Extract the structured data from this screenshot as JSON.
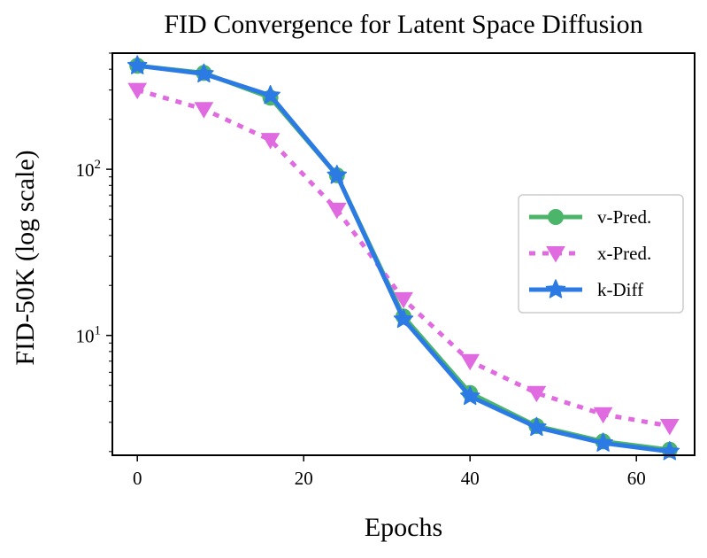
{
  "chart_data": {
    "type": "line",
    "title": "FID Convergence for Latent Space Diffusion",
    "xlabel": "Epochs",
    "ylabel": "FID-50K (log scale)",
    "x": [
      0,
      8,
      16,
      24,
      32,
      40,
      48,
      56,
      64
    ],
    "xlim": [
      -3,
      67
    ],
    "ylim": [
      1.9,
      500
    ],
    "yscale": "log",
    "xticks": [
      0,
      20,
      40,
      60
    ],
    "xtick_labels": [
      "0",
      "20",
      "40",
      "60"
    ],
    "yticks": [
      {
        "value": 10,
        "base": "10",
        "exp": "1"
      },
      {
        "value": 100,
        "base": "10",
        "exp": "2"
      }
    ],
    "grid": false,
    "legend_position": "center-right",
    "series": [
      {
        "name": "v-Pred.",
        "values": [
          420,
          380,
          270,
          92,
          13.0,
          4.5,
          2.85,
          2.3,
          2.05
        ],
        "color": "#4bb56a",
        "line_style": "solid",
        "marker": "circle-marker"
      },
      {
        "name": "x-Pred.",
        "values": [
          300,
          230,
          150,
          57,
          16.5,
          7.0,
          4.5,
          3.35,
          2.85
        ],
        "color": "#e06be0",
        "line_style": "dotted",
        "marker": "triangle-down-marker"
      },
      {
        "name": "k-Diff",
        "values": [
          420,
          375,
          278,
          92,
          12.5,
          4.3,
          2.8,
          2.25,
          2.0
        ],
        "color": "#2c7be5",
        "line_style": "solid",
        "marker": "star-marker"
      }
    ]
  }
}
